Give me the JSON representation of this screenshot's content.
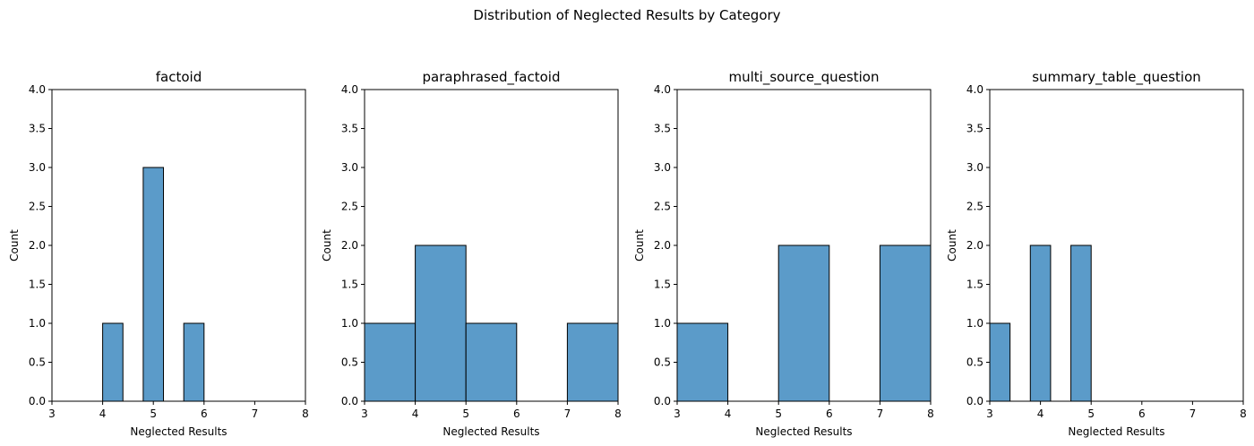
{
  "chart_data": {
    "type": "bar",
    "suptitle": "Distribution of Neglected Results by Category",
    "bar_color": "#5b9bc9",
    "edge_color": "#000000",
    "grid": false,
    "panels": [
      {
        "title": "factoid",
        "xlabel": "Neglected Results",
        "ylabel": "Count",
        "xlim": [
          3,
          8
        ],
        "ylim": [
          0,
          4.0
        ],
        "xticks": [
          "3",
          "4",
          "5",
          "6",
          "7",
          "8"
        ],
        "yticks": [
          "0.0",
          "0.5",
          "1.0",
          "1.5",
          "2.0",
          "2.5",
          "3.0",
          "3.5",
          "4.0"
        ],
        "bins": [
          {
            "x0": 4.0,
            "x1": 4.4,
            "count": 1
          },
          {
            "x0": 4.8,
            "x1": 5.2,
            "count": 3
          },
          {
            "x0": 5.6,
            "x1": 6.0,
            "count": 1
          }
        ]
      },
      {
        "title": "paraphrased_factoid",
        "xlabel": "Neglected Results",
        "ylabel": "Count",
        "xlim": [
          3,
          8
        ],
        "ylim": [
          0,
          4.0
        ],
        "xticks": [
          "3",
          "4",
          "5",
          "6",
          "7",
          "8"
        ],
        "yticks": [
          "0.0",
          "0.5",
          "1.0",
          "1.5",
          "2.0",
          "2.5",
          "3.0",
          "3.5",
          "4.0"
        ],
        "bins": [
          {
            "x0": 3,
            "x1": 4,
            "count": 1
          },
          {
            "x0": 4,
            "x1": 5,
            "count": 2
          },
          {
            "x0": 5,
            "x1": 6,
            "count": 1
          },
          {
            "x0": 7,
            "x1": 8,
            "count": 1
          }
        ]
      },
      {
        "title": "multi_source_question",
        "xlabel": "Neglected Results",
        "ylabel": "Count",
        "xlim": [
          3,
          8
        ],
        "ylim": [
          0,
          4.0
        ],
        "xticks": [
          "3",
          "4",
          "5",
          "6",
          "7",
          "8"
        ],
        "yticks": [
          "0.0",
          "0.5",
          "1.0",
          "1.5",
          "2.0",
          "2.5",
          "3.0",
          "3.5",
          "4.0"
        ],
        "bins": [
          {
            "x0": 3,
            "x1": 4,
            "count": 1
          },
          {
            "x0": 5,
            "x1": 6,
            "count": 2
          },
          {
            "x0": 7,
            "x1": 8,
            "count": 2
          }
        ]
      },
      {
        "title": "summary_table_question",
        "xlabel": "Neglected Results",
        "ylabel": "Count",
        "xlim": [
          3,
          8
        ],
        "ylim": [
          0,
          4.0
        ],
        "xticks": [
          "3",
          "4",
          "5",
          "6",
          "7",
          "8"
        ],
        "yticks": [
          "0.0",
          "0.5",
          "1.0",
          "1.5",
          "2.0",
          "2.5",
          "3.0",
          "3.5",
          "4.0"
        ],
        "bins": [
          {
            "x0": 3.0,
            "x1": 3.4,
            "count": 1
          },
          {
            "x0": 3.8,
            "x1": 4.2,
            "count": 2
          },
          {
            "x0": 4.6,
            "x1": 5.0,
            "count": 2
          }
        ]
      }
    ]
  }
}
